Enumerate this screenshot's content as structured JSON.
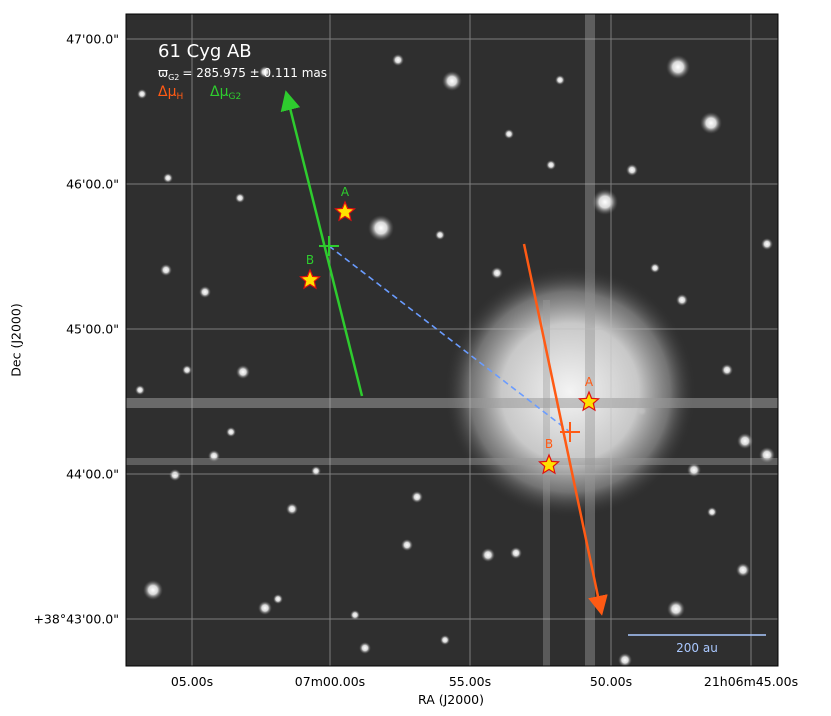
{
  "title": "61 Cyg AB",
  "parallax_label": "ϖₒ₂ = 285.975 ± 0.111 mas",
  "parallax": {
    "symbol": "ϖ",
    "subscript": "G2",
    "value": "= 285.975 ± 0.111 mas"
  },
  "legend": [
    {
      "symbol": "Δμ",
      "subscript": "H",
      "color": "#ff5a14"
    },
    {
      "symbol": "Δμ",
      "subscript": "G2",
      "color": "#2ecc2e"
    }
  ],
  "axes": {
    "xlabel": "RA (J2000)",
    "ylabel": "Dec (J2000)",
    "xticks": [
      "05.00s",
      "07m00.00s",
      "55.00s",
      "50.00s",
      "21h06m45.00s"
    ],
    "yticks": [
      "47'00.0\"",
      "46'00.0\"",
      "45'00.0\"",
      "44'00.0\"",
      "+38°43'00.0\""
    ],
    "grid": true
  },
  "stars": [
    {
      "label": "A",
      "system": "G2",
      "color": "#2ecc2e"
    },
    {
      "label": "B",
      "system": "G2",
      "color": "#2ecc2e"
    },
    {
      "label": "A",
      "system": "H",
      "color": "#ff5a14"
    },
    {
      "label": "B",
      "system": "H",
      "color": "#ff5a14"
    }
  ],
  "scale_bar": {
    "label": "200 au",
    "color": "#aac8ff"
  },
  "colors": {
    "hipparcos": "#ff5a14",
    "gaia": "#2ecc2e",
    "connector": "#6a9cff",
    "star_fill": "#ffe100",
    "star_edge": "#e01010"
  }
}
